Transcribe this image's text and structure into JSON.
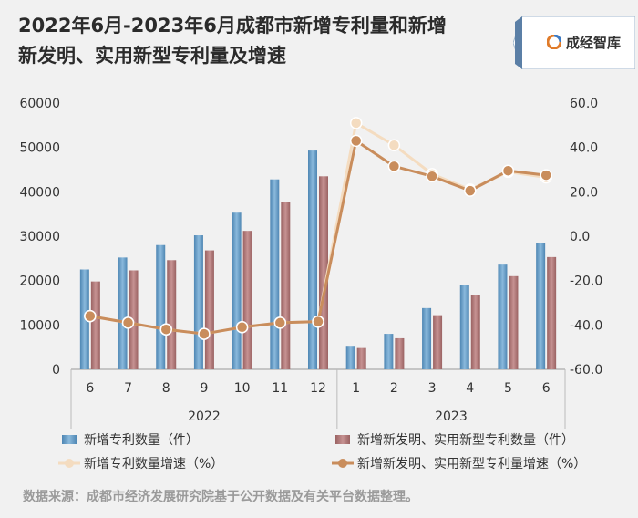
{
  "header": {
    "title_line1": "2022年6月-2023年6月成都市新增专利量和新增",
    "title_line2": "新发明、实用新型专利量及增速",
    "logo_text": "成经智库"
  },
  "footer": {
    "source": "数据来源：成都市经济发展研究院基于公开数据及有关平台数据整理。"
  },
  "colors": {
    "bar_total": "#6a9dc4",
    "bar_invent": "#b07a7a",
    "line_total": "#f4dcc0",
    "line_invent": "#c98d5c"
  },
  "chart_data": {
    "type": "bar",
    "categories": [
      "6",
      "7",
      "8",
      "9",
      "10",
      "11",
      "12",
      "1",
      "2",
      "3",
      "4",
      "5",
      "6"
    ],
    "year_groups": [
      {
        "label": "2022",
        "from": 0,
        "to": 6
      },
      {
        "label": "2023",
        "from": 7,
        "to": 12
      }
    ],
    "left_axis": {
      "ylim": [
        0,
        60000
      ],
      "ticks": [
        "0",
        "10000",
        "20000",
        "30000",
        "40000",
        "50000",
        "60000"
      ]
    },
    "right_axis": {
      "ylim": [
        -60,
        60
      ],
      "ticks": [
        "-60.0",
        "-40.0",
        "-20.0",
        "0.0",
        "20.0",
        "40.0",
        "60.0"
      ]
    },
    "series": [
      {
        "name": "新增专利数量（件）",
        "kind": "bar",
        "axis": "left",
        "values": [
          22500,
          25200,
          28000,
          30200,
          35300,
          42800,
          49300,
          5300,
          8000,
          13800,
          19000,
          23600,
          28500
        ]
      },
      {
        "name": "新增新发明、实用新型专利数量（件）",
        "kind": "bar",
        "axis": "left",
        "values": [
          19800,
          22300,
          24600,
          26800,
          31200,
          37700,
          43500,
          4800,
          7000,
          12200,
          16700,
          21000,
          25300
        ]
      },
      {
        "name": "新增专利数量增速（%）",
        "kind": "line",
        "axis": "right",
        "values": [
          -36.0,
          -39.0,
          -42.0,
          -44.0,
          -41.0,
          -39.0,
          -38.5,
          51.0,
          41.0,
          28.0,
          21.0,
          29.0,
          26.5
        ]
      },
      {
        "name": "新增新发明、实用新型专利量增速（%）",
        "kind": "line",
        "axis": "right",
        "values": [
          -36.0,
          -39.0,
          -42.0,
          -44.0,
          -41.0,
          -39.0,
          -38.5,
          43.0,
          31.5,
          27.0,
          20.5,
          29.5,
          27.5
        ]
      }
    ],
    "legend_position": "bottom",
    "grid": false
  }
}
